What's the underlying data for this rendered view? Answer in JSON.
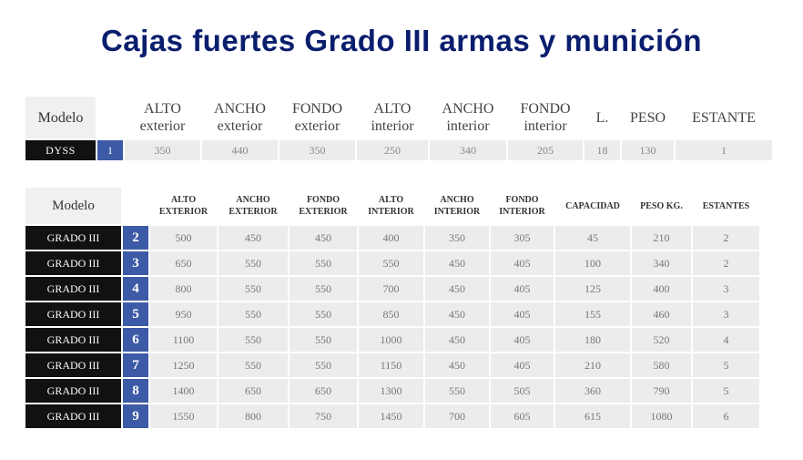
{
  "title": "Cajas fuertes Grado III armas y munición",
  "table1": {
    "headers": [
      {
        "l1": "Modelo",
        "l2": ""
      },
      {
        "l1": "",
        "l2": ""
      },
      {
        "l1": "ALTO",
        "l2": "exterior"
      },
      {
        "l1": "ANCHO",
        "l2": "exterior"
      },
      {
        "l1": "FONDO",
        "l2": "exterior"
      },
      {
        "l1": "ALTO",
        "l2": "interior"
      },
      {
        "l1": "ANCHO",
        "l2": "interior"
      },
      {
        "l1": "FONDO",
        "l2": "interior"
      },
      {
        "l1": "L.",
        "l2": ""
      },
      {
        "l1": "PESO",
        "l2": ""
      },
      {
        "l1": "ESTANTE",
        "l2": ""
      }
    ],
    "rows": [
      {
        "model": "DYSS",
        "num": "1",
        "values": [
          "350",
          "440",
          "350",
          "250",
          "340",
          "205",
          "18",
          "130",
          "1"
        ]
      }
    ]
  },
  "table2": {
    "headers": [
      {
        "l1": "Modelo",
        "l2": ""
      },
      {
        "l1": "",
        "l2": ""
      },
      {
        "l1": "ALTO",
        "l2": "EXTERIOR"
      },
      {
        "l1": "ANCHO",
        "l2": "EXTERIOR"
      },
      {
        "l1": "FONDO",
        "l2": "EXTERIOR"
      },
      {
        "l1": "ALTO",
        "l2": "INTERIOR"
      },
      {
        "l1": "ANCHO",
        "l2": "INTERIOR"
      },
      {
        "l1": "FONDO",
        "l2": "INTERIOR"
      },
      {
        "l1": "CAPACIDAD",
        "l2": ""
      },
      {
        "l1": "PESO KG.",
        "l2": ""
      },
      {
        "l1": "ESTANTES",
        "l2": ""
      }
    ],
    "rows": [
      {
        "model": "GRADO III",
        "num": "2",
        "values": [
          "500",
          "450",
          "450",
          "400",
          "350",
          "305",
          "45",
          "210",
          "2"
        ]
      },
      {
        "model": "GRADO III",
        "num": "3",
        "values": [
          "650",
          "550",
          "550",
          "550",
          "450",
          "405",
          "100",
          "340",
          "2"
        ]
      },
      {
        "model": "GRADO III",
        "num": "4",
        "values": [
          "800",
          "550",
          "550",
          "700",
          "450",
          "405",
          "125",
          "400",
          "3"
        ]
      },
      {
        "model": "GRADO III",
        "num": "5",
        "values": [
          "950",
          "550",
          "550",
          "850",
          "450",
          "405",
          "155",
          "460",
          "3"
        ]
      },
      {
        "model": "GRADO III",
        "num": "6",
        "values": [
          "1100",
          "550",
          "550",
          "1000",
          "450",
          "405",
          "180",
          "520",
          "4"
        ]
      },
      {
        "model": "GRADO III",
        "num": "7",
        "values": [
          "1250",
          "550",
          "550",
          "1150",
          "450",
          "405",
          "210",
          "580",
          "5"
        ]
      },
      {
        "model": "GRADO III",
        "num": "8",
        "values": [
          "1400",
          "650",
          "650",
          "1300",
          "550",
          "505",
          "360",
          "790",
          "5"
        ]
      },
      {
        "model": "GRADO III",
        "num": "9",
        "values": [
          "1550",
          "800",
          "750",
          "1450",
          "700",
          "605",
          "615",
          "1080",
          "6"
        ]
      }
    ]
  }
}
